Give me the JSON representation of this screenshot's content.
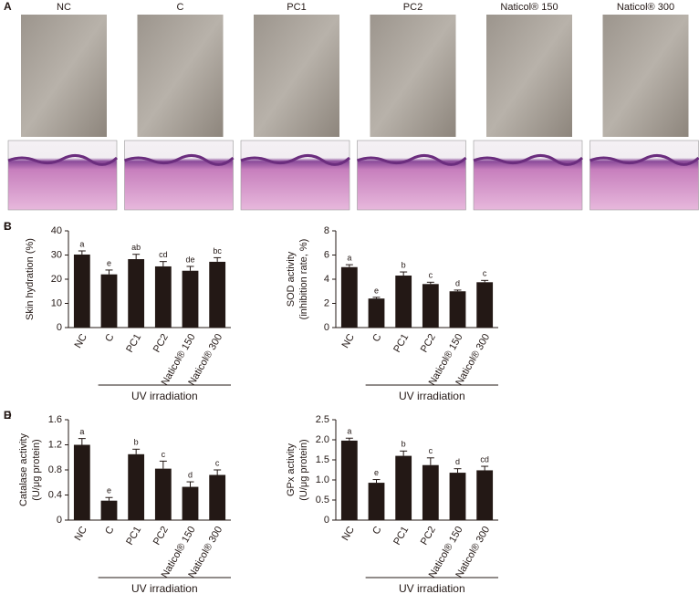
{
  "panel_a": {
    "label": "A",
    "groups": [
      "NC",
      "C",
      "PC1",
      "PC2",
      "Naticol® 150",
      "Naticol® 300"
    ]
  },
  "chart_data": [
    {
      "type": "bar",
      "panel": "B",
      "ylabel": [
        "Skin hydration (%)"
      ],
      "xlabel": "UV irradiation",
      "categories": [
        "NC",
        "C",
        "PC1",
        "PC2",
        "Naticol® 150",
        "Naticol® 300"
      ],
      "values": [
        30.2,
        22,
        28.3,
        25.3,
        23.5,
        27.2
      ],
      "errors": [
        1.5,
        1.8,
        2,
        2,
        1.8,
        1.7
      ],
      "value_labels": [
        "a",
        "e",
        "ab",
        "cd",
        "de",
        "bc"
      ],
      "color": "#231815",
      "ylim": [
        0,
        40
      ],
      "yticks": [
        0,
        10,
        20,
        30,
        40
      ]
    },
    {
      "type": "bar",
      "panel": "C",
      "ylabel": [
        "SOD activity",
        "(inhibition rate, %)"
      ],
      "xlabel": "UV irradiation",
      "categories": [
        "NC",
        "C",
        "PC1",
        "PC2",
        "Naticol® 150",
        "Naticol® 300"
      ],
      "values": [
        5.0,
        2.4,
        4.3,
        3.6,
        3.0,
        3.75
      ],
      "errors": [
        0.2,
        0.1,
        0.3,
        0.15,
        0.1,
        0.15
      ],
      "value_labels": [
        "a",
        "e",
        "b",
        "c",
        "d",
        "c"
      ],
      "color": "#231815",
      "ylim": [
        0,
        8
      ],
      "yticks": [
        0,
        2,
        4,
        6,
        8
      ]
    },
    {
      "type": "bar",
      "panel": "D",
      "ylabel": [
        "Catalase activity",
        "(U/μg protein)"
      ],
      "xlabel": "UV irradiation",
      "categories": [
        "NC",
        "C",
        "PC1",
        "PC2",
        "Naticol® 150",
        "Naticol® 300"
      ],
      "values": [
        1.2,
        0.31,
        1.05,
        0.82,
        0.53,
        0.72
      ],
      "errors": [
        0.1,
        0.05,
        0.08,
        0.12,
        0.08,
        0.08
      ],
      "value_labels": [
        "a",
        "e",
        "b",
        "c",
        "d",
        "c"
      ],
      "color": "#231815",
      "ylim": [
        0,
        1.6
      ],
      "yticks": [
        0,
        0.4,
        0.8,
        1.2,
        1.6
      ]
    },
    {
      "type": "bar",
      "panel": "E",
      "ylabel": [
        "GPx activity",
        "(U/μg protein)"
      ],
      "xlabel": "UV irradiation",
      "categories": [
        "NC",
        "C",
        "PC1",
        "PC2",
        "Naticol® 150",
        "Naticol® 300"
      ],
      "values": [
        1.98,
        0.93,
        1.6,
        1.37,
        1.18,
        1.24
      ],
      "errors": [
        0.06,
        0.08,
        0.12,
        0.18,
        0.1,
        0.1
      ],
      "value_labels": [
        "a",
        "e",
        "b",
        "c",
        "d",
        "cd"
      ],
      "color": "#231815",
      "ylim": [
        0,
        2.5
      ],
      "yticks": [
        0,
        0.5,
        {
          "value": 1,
          "label": "1.0"
        },
        1.5,
        {
          "value": 2,
          "label": "2.0"
        },
        2.5
      ]
    }
  ]
}
